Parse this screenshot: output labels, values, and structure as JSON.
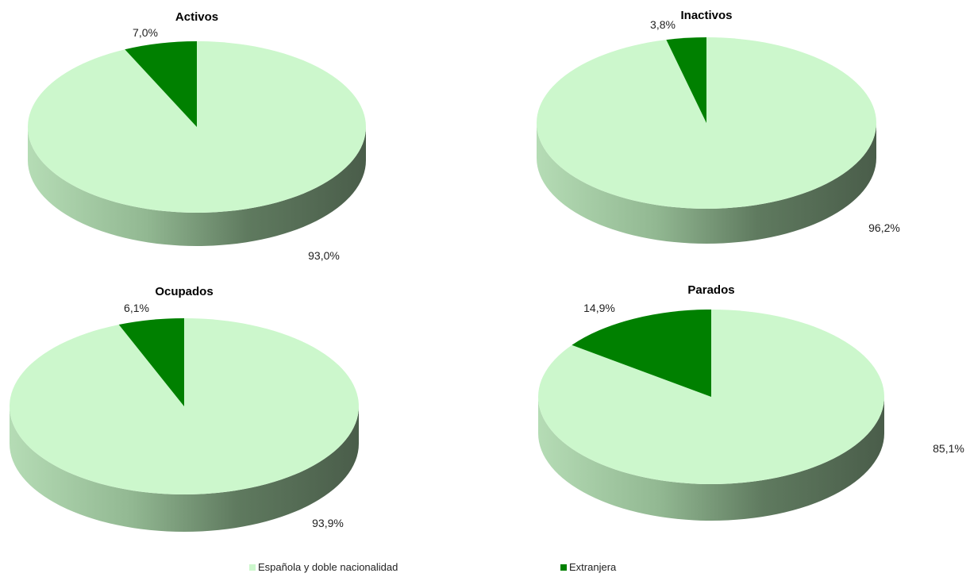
{
  "colors": {
    "espanola": "#ccf7cc",
    "extranjera": "#008000",
    "side_light": "#a9d4a9",
    "side_dark": "#4d5f4d"
  },
  "chart_data": [
    {
      "type": "pie",
      "title": "Activos",
      "series": [
        {
          "name": "Española y doble nacionalidad",
          "value": 93.0,
          "label": "93,0%"
        },
        {
          "name": "Extranjera",
          "value": 7.0,
          "label": "7,0%"
        }
      ]
    },
    {
      "type": "pie",
      "title": "Inactivos",
      "series": [
        {
          "name": "Española y doble nacionalidad",
          "value": 96.2,
          "label": "96,2%"
        },
        {
          "name": "Extranjera",
          "value": 3.8,
          "label": "3,8%"
        }
      ]
    },
    {
      "type": "pie",
      "title": "Ocupados",
      "series": [
        {
          "name": "Española y doble nacionalidad",
          "value": 93.9,
          "label": "93,9%"
        },
        {
          "name": "Extranjera",
          "value": 6.1,
          "label": "6,1%"
        }
      ]
    },
    {
      "type": "pie",
      "title": "Parados",
      "series": [
        {
          "name": "Española y doble nacionalidad",
          "value": 85.1,
          "label": "85,1%"
        },
        {
          "name": "Extranjera",
          "value": 14.9,
          "label": "14,9%"
        }
      ]
    }
  ],
  "legend": {
    "items": [
      {
        "label": "Española y doble nacionalidad",
        "color": "#ccf7cc"
      },
      {
        "label": "Extranjera",
        "color": "#008000"
      }
    ]
  }
}
